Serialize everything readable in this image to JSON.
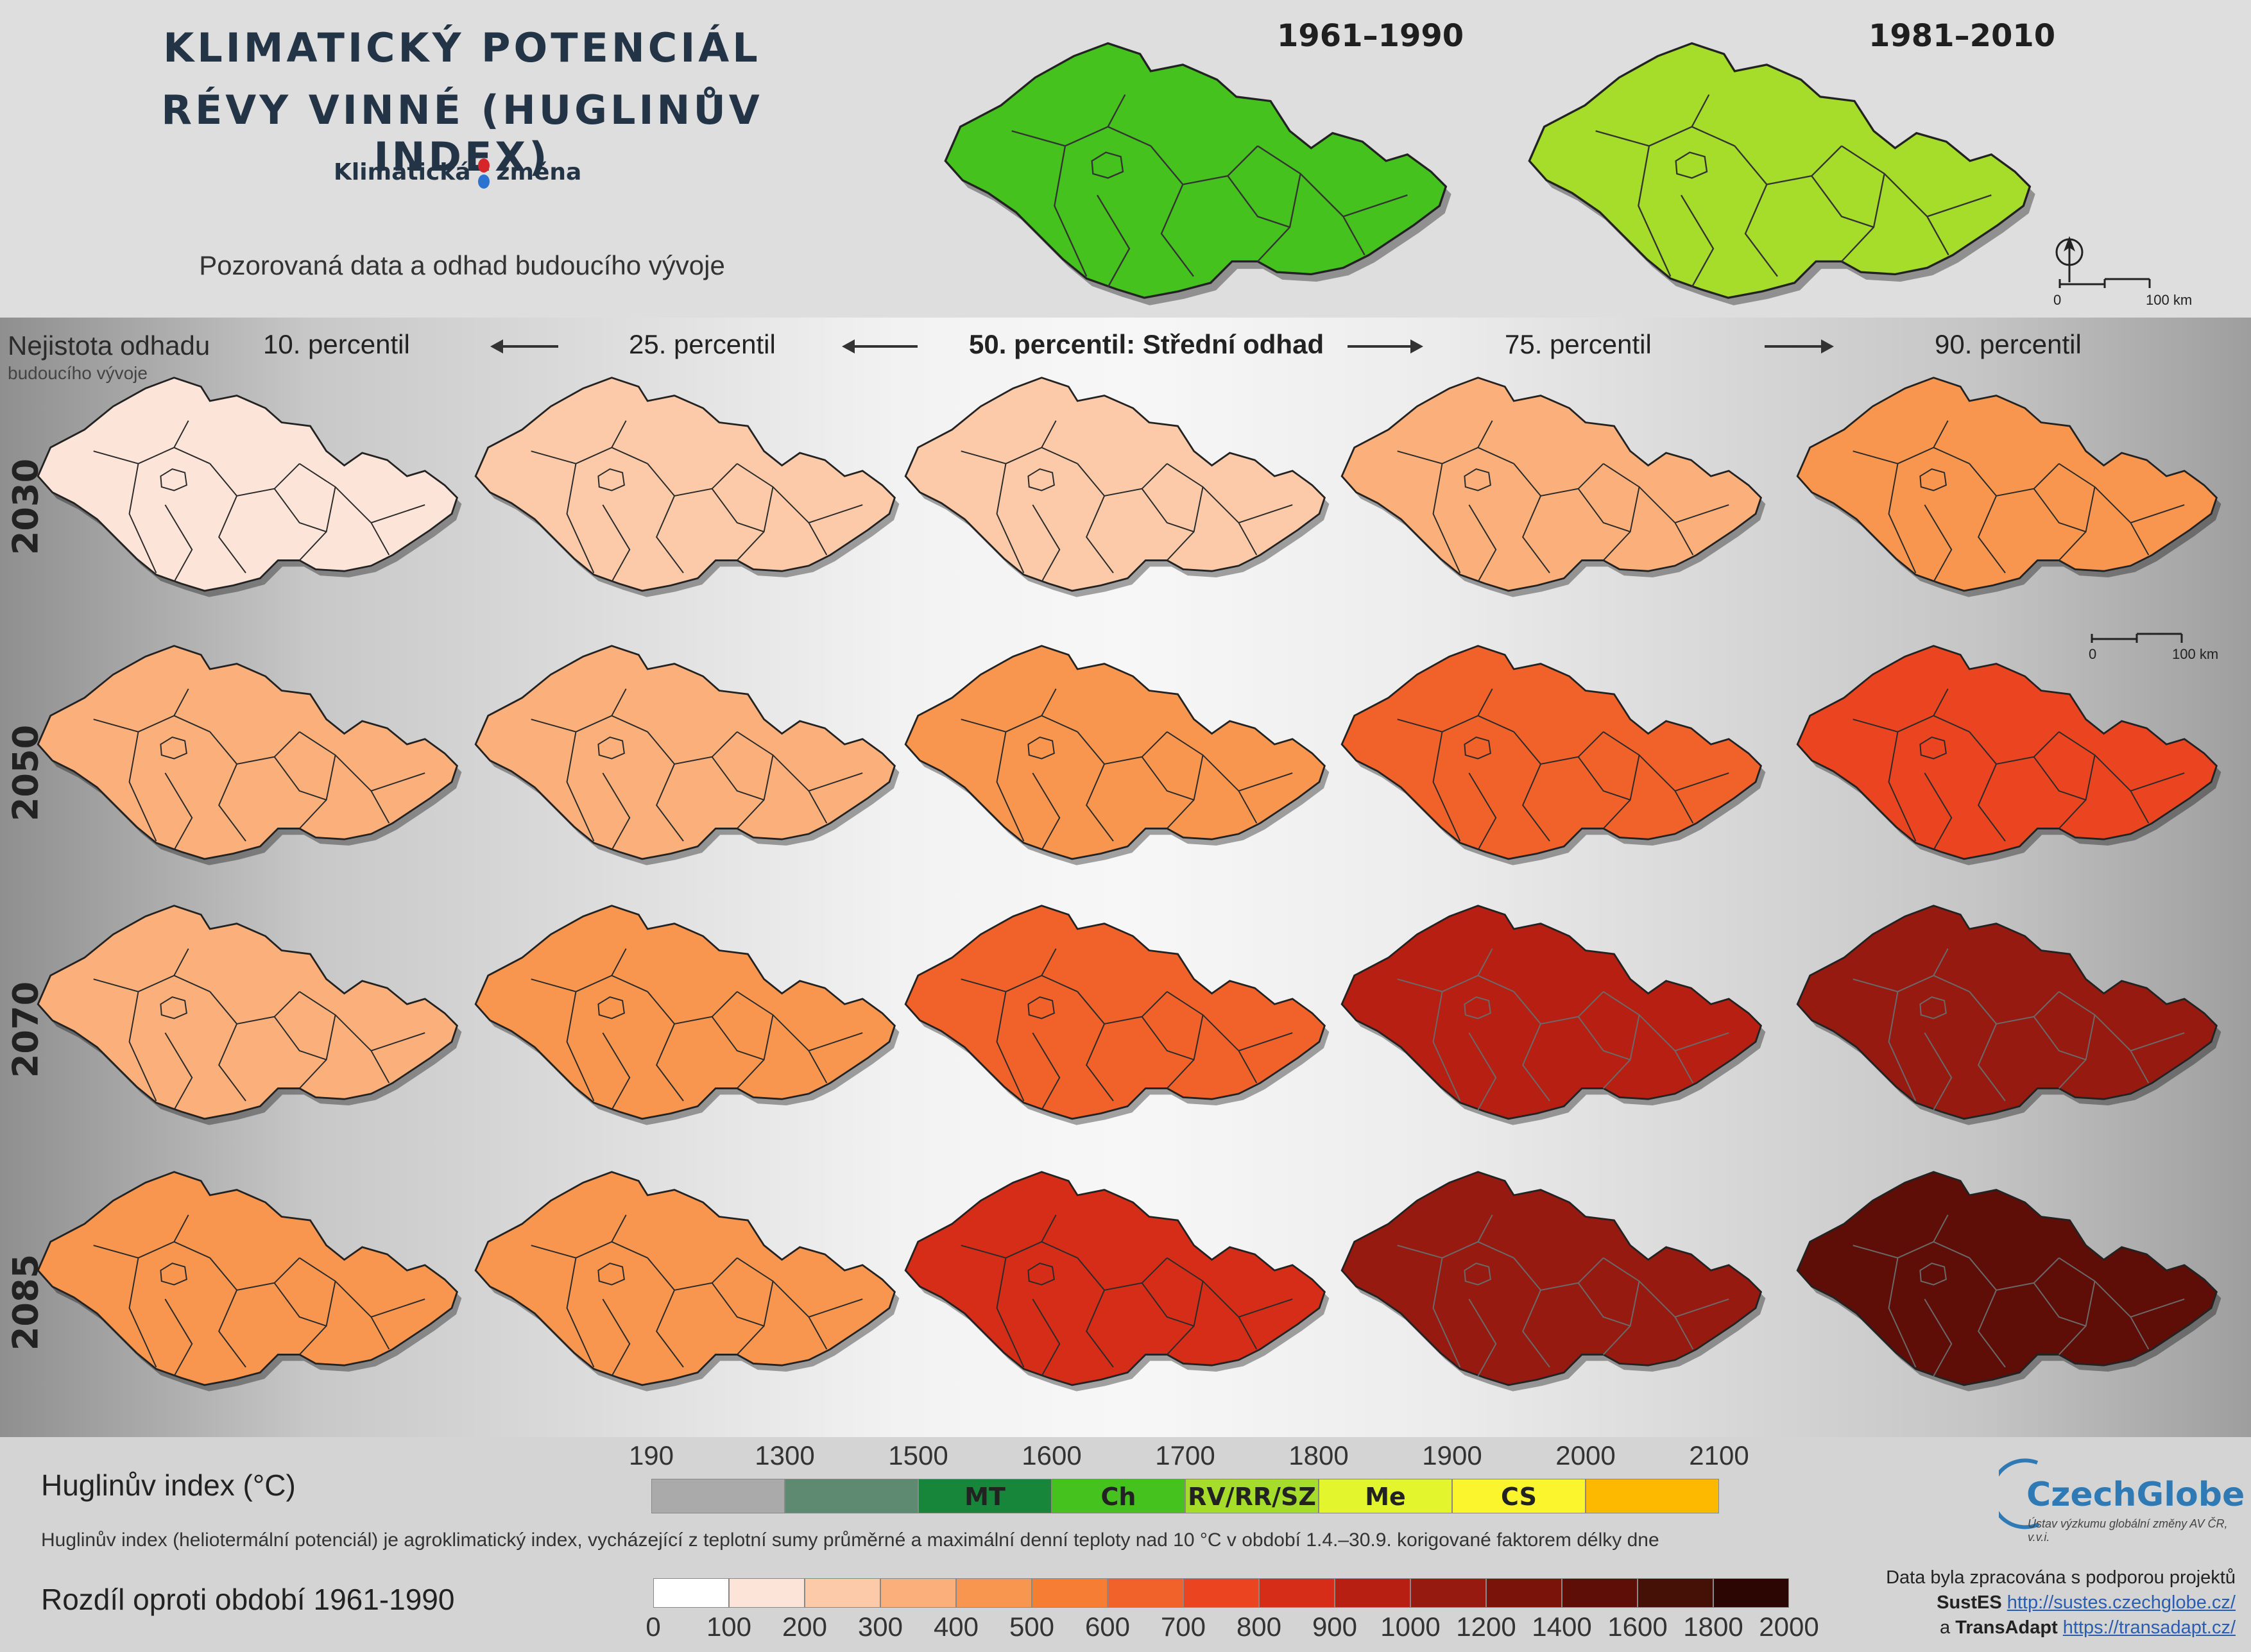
{
  "title_line1": "KLIMATICKÝ POTENCIÁL",
  "title_line2": "RÉVY VINNÉ (HUGLINŮV INDEX)",
  "brand": {
    "part1": "Klimatická",
    "part2": "změna"
  },
  "subtitle": "Pozorovaná data a odhad budoucího vývoje",
  "observed": [
    {
      "period": "1961–1990",
      "class": "Ch"
    },
    {
      "period": "1981–2010",
      "class": "RV/RR/SZ"
    }
  ],
  "scale_bar": {
    "start": "0",
    "end": "100 km"
  },
  "uncertainty": {
    "line1": "Nejistota odhadu",
    "line2": "budoucího vývoje"
  },
  "columns": [
    "10. percentil",
    "25. percentil",
    "50. percentil: Střední odhad",
    "75. percentil",
    "90. percentil"
  ],
  "years": [
    "2030",
    "2050",
    "2070",
    "2085"
  ],
  "projection_differences": [
    [
      100,
      200,
      200,
      300,
      400
    ],
    [
      300,
      300,
      400,
      600,
      700
    ],
    [
      300,
      400,
      600,
      900,
      1000
    ],
    [
      400,
      400,
      800,
      1000,
      1400
    ]
  ],
  "legend_hi": {
    "title": "Huglinův index (°C)",
    "ticks": [
      "190",
      "1300",
      "1500",
      "1600",
      "1700",
      "1800",
      "1900",
      "2000",
      "2100"
    ],
    "classes": [
      {
        "label": "",
        "color": "#aaaaaa"
      },
      {
        "label": "",
        "color": "#5f8a72"
      },
      {
        "label": "MT",
        "color": "#17853a"
      },
      {
        "label": "Ch",
        "color": "#45c21d"
      },
      {
        "label": "RV/RR/SZ",
        "color": "#a5dd2a"
      },
      {
        "label": "Me",
        "color": "#e3f52c"
      },
      {
        "label": "CS",
        "color": "#fbf52e"
      },
      {
        "label": "",
        "color": "#fdb900"
      }
    ]
  },
  "description": "Huglinův index (heliotermální potenciál) je agroklimatický index, vycházející z teplotní sumy průměrné a maximální denní teploty nad 10 °C v období 1.4.–30.9. korigované faktorem délky dne",
  "legend_diff": {
    "title": "Rozdíl oproti období 1961-1990",
    "ticks": [
      "0",
      "100",
      "200",
      "300",
      "400",
      "500",
      "600",
      "700",
      "800",
      "900",
      "1000",
      "1200",
      "1400",
      "1600",
      "1800",
      "2000"
    ],
    "colors": [
      "#ffffff",
      "#fde4d8",
      "#fccaa8",
      "#fbb07b",
      "#f8964f",
      "#f57d34",
      "#f1622a",
      "#ea4420",
      "#d52d18",
      "#b71f12",
      "#971a10",
      "#7a1309",
      "#5e0e06",
      "#451005",
      "#2b0603"
    ]
  },
  "logo": {
    "name": "CzechGlobe",
    "subtitle": "Ústav výzkumu globální změny AV ČR, v.v.i."
  },
  "credits": {
    "line1": "Data byla zpracována s podporou projektů",
    "p1_name": "SustES",
    "p1_url": "http://sustes.czechglobe.cz/",
    "p2_prefix": "a",
    "p2_name": "TransAdapt",
    "p2_url": "https://transadapt.cz/"
  }
}
